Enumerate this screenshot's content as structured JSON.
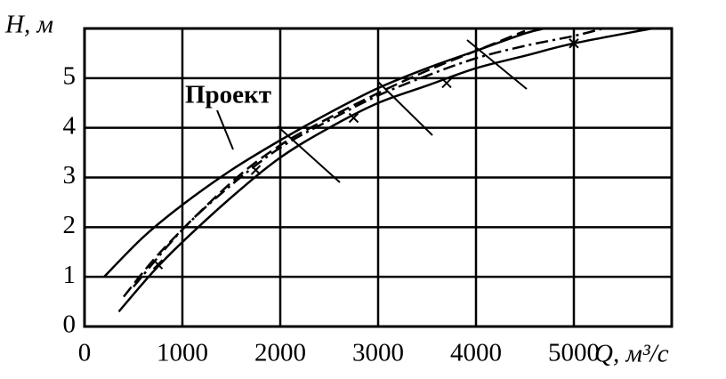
{
  "chart_data": {
    "type": "line",
    "y_label": "H, м",
    "x_label": "Q, м³/с",
    "annotation": "Проект",
    "xlim": [
      0,
      6000
    ],
    "ylim": [
      0,
      6
    ],
    "xticks": [
      0,
      1000,
      2000,
      3000,
      4000,
      5000
    ],
    "yticks": [
      0,
      1,
      2,
      3,
      4,
      5
    ],
    "grid": true,
    "series": [
      {
        "color": "#000000",
        "style": "solid",
        "x": [
          200,
          600,
          1000,
          1500,
          2000,
          2500,
          3000,
          3500,
          4000,
          4500,
          4700
        ],
        "values": [
          1.0,
          1.8,
          2.45,
          3.15,
          3.75,
          4.3,
          4.8,
          5.2,
          5.55,
          5.9,
          6.0
        ]
      },
      {
        "color": "#000000",
        "style": "dashed",
        "x": [
          400,
          800,
          1500,
          2000,
          2500,
          3000,
          3500,
          4000,
          4500
        ],
        "values": [
          0.6,
          1.55,
          2.9,
          3.65,
          4.2,
          4.7,
          5.15,
          5.55,
          5.95
        ]
      },
      {
        "color": "#000000",
        "style": "dashdot",
        "x": [
          500,
          1000,
          1500,
          2000,
          2500,
          3000,
          3500,
          4000,
          4500,
          5000,
          5300
        ],
        "values": [
          0.8,
          1.95,
          2.85,
          3.6,
          4.15,
          4.65,
          5.05,
          5.4,
          5.65,
          5.85,
          6.0
        ]
      },
      {
        "color": "#000000",
        "style": "solid",
        "x": [
          350,
          700,
          1000,
          1500,
          2000,
          2500,
          3000,
          3500,
          4000,
          4500,
          5000,
          5800
        ],
        "values": [
          0.3,
          1.1,
          1.7,
          2.6,
          3.4,
          4.0,
          4.5,
          4.85,
          5.2,
          5.45,
          5.7,
          6.0
        ]
      },
      {
        "color": "#000000",
        "style": "marker",
        "x": [
          750,
          1750,
          2750,
          3700,
          5000
        ],
        "values": [
          1.25,
          3.15,
          4.2,
          4.9,
          5.7
        ]
      }
    ]
  }
}
